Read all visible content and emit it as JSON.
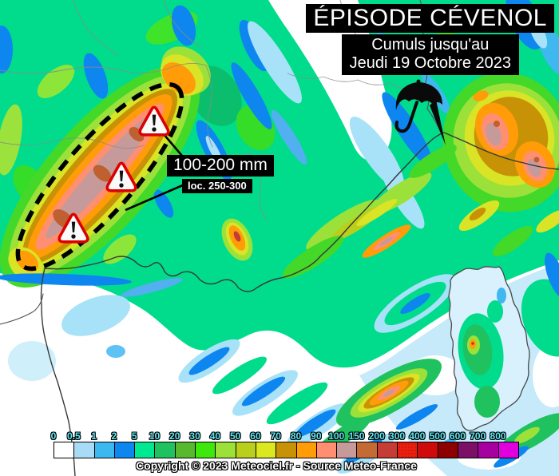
{
  "header": {
    "title": "ÉPISODE CÉVENOL",
    "subtitle_line1": "Cumuls jusqu'au",
    "subtitle_line2": "Jeudi 19 Octobre 2023"
  },
  "annotation": {
    "range": "100-200 mm",
    "local": "loc. 250-300"
  },
  "legend": {
    "stops": [
      {
        "label": "0",
        "color": "#FFFFFF"
      },
      {
        "label": "0.5",
        "color": "#A8DCF6"
      },
      {
        "label": "1",
        "color": "#3CB8F0"
      },
      {
        "label": "2",
        "color": "#0D86F0"
      },
      {
        "label": "5",
        "color": "#00E890"
      },
      {
        "label": "10",
        "color": "#1FC25E"
      },
      {
        "label": "20",
        "color": "#58B82E"
      },
      {
        "label": "30",
        "color": "#3FE80C"
      },
      {
        "label": "40",
        "color": "#9CE03A"
      },
      {
        "label": "50",
        "color": "#BACF1C"
      },
      {
        "label": "60",
        "color": "#DCE81E"
      },
      {
        "label": "70",
        "color": "#C89206"
      },
      {
        "label": "80",
        "color": "#FF9C08"
      },
      {
        "label": "90",
        "color": "#FF8F70"
      },
      {
        "label": "100",
        "color": "#C69A9A"
      },
      {
        "label": "150",
        "color": "#C46A34"
      },
      {
        "label": "200",
        "color": "#C43C34"
      },
      {
        "label": "300",
        "color": "#E82010",
        "texture": "dotted"
      },
      {
        "label": "400",
        "color": "#CE0A0A"
      },
      {
        "label": "500",
        "color": "#8E0000"
      },
      {
        "label": "600",
        "color": "#7C1066"
      },
      {
        "label": "700",
        "color": "#A600A0"
      },
      {
        "label": "800",
        "color": "#E000DE"
      }
    ]
  },
  "footer": {
    "copyright": "Copyright © 2023 Meteociel.fr - Source Meteo-France"
  },
  "colors": {
    "label_cyan": "#5CE8F5",
    "warning_red": "#DD0000",
    "overlay_black": "#000000"
  }
}
